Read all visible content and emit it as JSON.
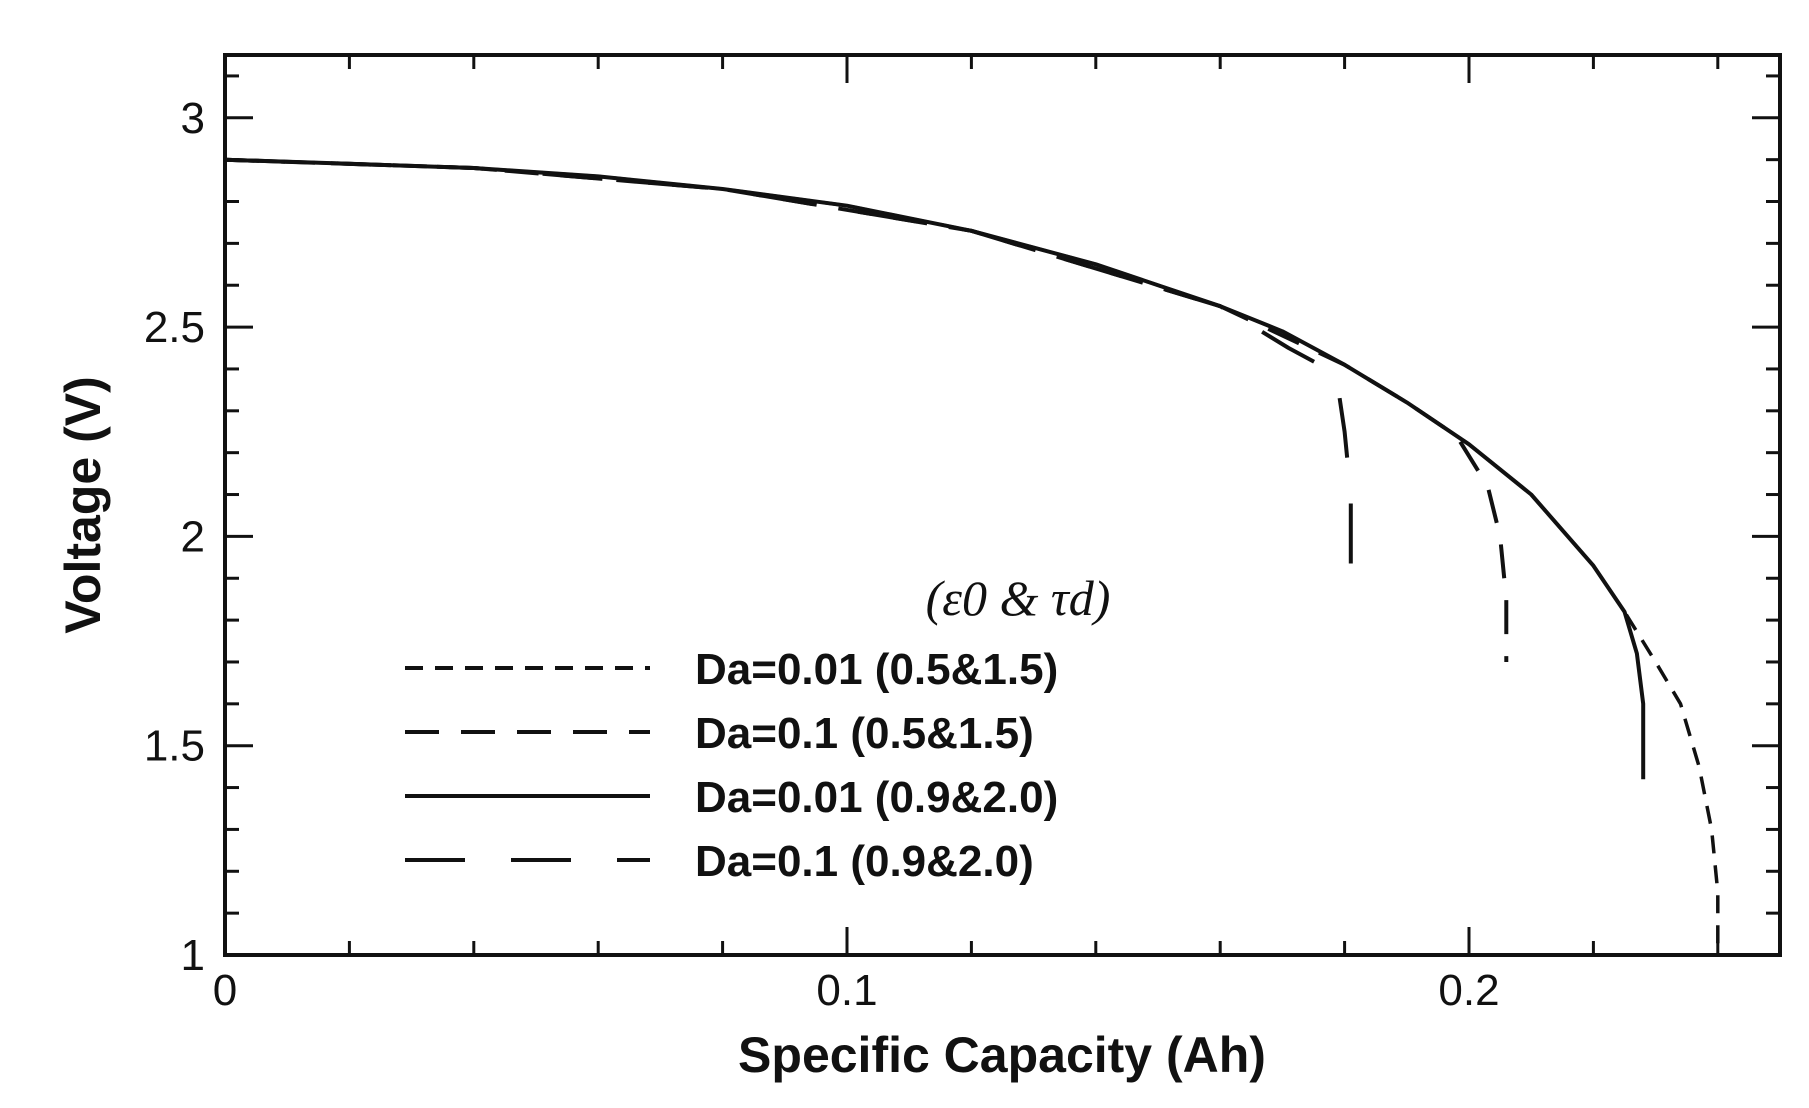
{
  "chart_data": {
    "type": "line",
    "xlabel": "Specific Capacity (Ah)",
    "ylabel": "Voltage (V)",
    "xlim": [
      0,
      0.25
    ],
    "ylim": [
      1,
      3.15
    ],
    "x_ticks": [
      "0",
      "0.1",
      "0.2"
    ],
    "y_ticks": [
      "1",
      "1.5",
      "2",
      "2.5",
      "3"
    ],
    "legend": {
      "title": "(ε0 & τd)",
      "placement": "center"
    },
    "series": [
      {
        "name": "Da=0.01 (0.5&1.5)",
        "style": "short-dash",
        "points": [
          [
            0,
            2.9
          ],
          [
            0.02,
            2.89
          ],
          [
            0.04,
            2.88
          ],
          [
            0.06,
            2.86
          ],
          [
            0.08,
            2.83
          ],
          [
            0.1,
            2.79
          ],
          [
            0.12,
            2.73
          ],
          [
            0.14,
            2.65
          ],
          [
            0.16,
            2.55
          ],
          [
            0.17,
            2.49
          ],
          [
            0.18,
            2.41
          ],
          [
            0.19,
            2.32
          ],
          [
            0.2,
            2.22
          ],
          [
            0.21,
            2.1
          ],
          [
            0.22,
            1.93
          ],
          [
            0.225,
            1.82
          ],
          [
            0.23,
            1.7
          ],
          [
            0.234,
            1.6
          ],
          [
            0.237,
            1.45
          ],
          [
            0.239,
            1.3
          ],
          [
            0.24,
            1.15
          ],
          [
            0.24,
            1.0
          ]
        ]
      },
      {
        "name": "Da=0.1 (0.5&1.5)",
        "style": "medium-dash",
        "points": [
          [
            0,
            2.9
          ],
          [
            0.04,
            2.88
          ],
          [
            0.08,
            2.83
          ],
          [
            0.12,
            2.73
          ],
          [
            0.16,
            2.55
          ],
          [
            0.18,
            2.41
          ],
          [
            0.19,
            2.32
          ],
          [
            0.198,
            2.24
          ],
          [
            0.203,
            2.12
          ],
          [
            0.205,
            2.0
          ],
          [
            0.206,
            1.85
          ],
          [
            0.206,
            1.7
          ]
        ]
      },
      {
        "name": "Da=0.01 (0.9&2.0)",
        "style": "solid",
        "points": [
          [
            0,
            2.9
          ],
          [
            0.02,
            2.89
          ],
          [
            0.04,
            2.88
          ],
          [
            0.06,
            2.86
          ],
          [
            0.08,
            2.83
          ],
          [
            0.1,
            2.79
          ],
          [
            0.12,
            2.73
          ],
          [
            0.14,
            2.65
          ],
          [
            0.16,
            2.55
          ],
          [
            0.17,
            2.49
          ],
          [
            0.18,
            2.41
          ],
          [
            0.19,
            2.32
          ],
          [
            0.2,
            2.22
          ],
          [
            0.21,
            2.1
          ],
          [
            0.22,
            1.93
          ],
          [
            0.225,
            1.82
          ],
          [
            0.227,
            1.72
          ],
          [
            0.228,
            1.6
          ],
          [
            0.228,
            1.42
          ]
        ]
      },
      {
        "name": "Da=0.1 (0.9&2.0)",
        "style": "long-dash",
        "points": [
          [
            0,
            2.9
          ],
          [
            0.04,
            2.88
          ],
          [
            0.08,
            2.83
          ],
          [
            0.12,
            2.73
          ],
          [
            0.16,
            2.55
          ],
          [
            0.171,
            2.45
          ],
          [
            0.176,
            2.41
          ],
          [
            0.179,
            2.35
          ],
          [
            0.18,
            2.25
          ],
          [
            0.181,
            2.1
          ],
          [
            0.181,
            1.85
          ]
        ]
      }
    ]
  }
}
